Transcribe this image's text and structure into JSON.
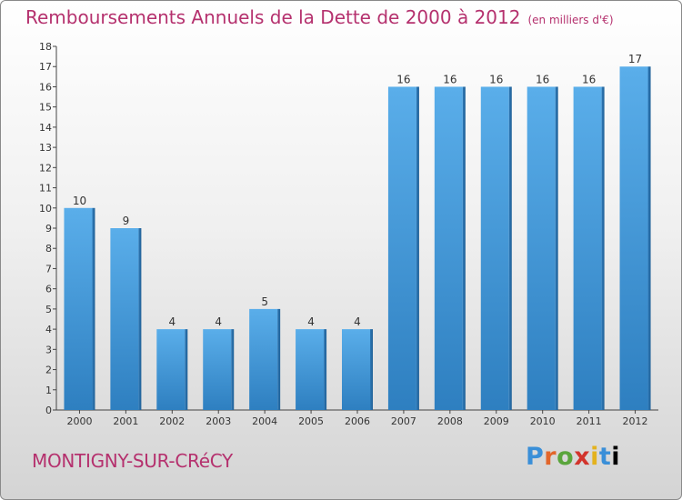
{
  "chart_data": {
    "type": "bar",
    "title": "Remboursements Annuels de la Dette de 2000 à 2012",
    "subtitle": "(en milliers d'€)",
    "categories": [
      "2000",
      "2001",
      "2002",
      "2003",
      "2004",
      "2005",
      "2006",
      "2007",
      "2008",
      "2009",
      "2010",
      "2011",
      "2012"
    ],
    "values": [
      10,
      9,
      4,
      4,
      5,
      4,
      4,
      16,
      16,
      16,
      16,
      16,
      17
    ],
    "ylim": [
      0,
      18
    ],
    "yticks": [
      0,
      1,
      2,
      3,
      4,
      5,
      6,
      7,
      8,
      9,
      10,
      11,
      12,
      13,
      14,
      15,
      16,
      17,
      18
    ],
    "xlabel": "",
    "ylabel": "",
    "grid": false,
    "bar_color": "#4ea3e0"
  },
  "footer": {
    "commune": "MONTIGNY-SUR-CRéCY",
    "logo_letters": [
      "P",
      "r",
      "o",
      "x",
      "i",
      "t",
      "i"
    ]
  },
  "colors": {
    "title": "#b5316e",
    "axis": "#444444"
  }
}
